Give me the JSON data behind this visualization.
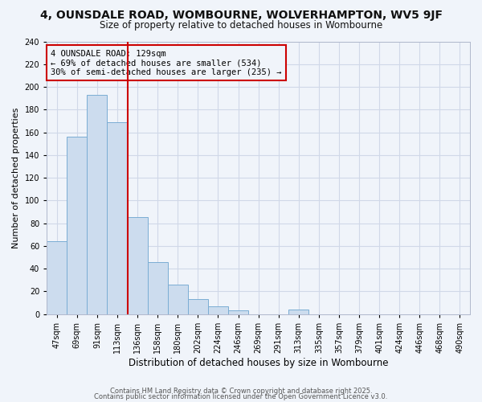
{
  "title": "4, OUNSDALE ROAD, WOMBOURNE, WOLVERHAMPTON, WV5 9JF",
  "subtitle": "Size of property relative to detached houses in Wombourne",
  "xlabel": "Distribution of detached houses by size in Wombourne",
  "ylabel": "Number of detached properties",
  "bar_labels": [
    "47sqm",
    "69sqm",
    "91sqm",
    "113sqm",
    "136sqm",
    "158sqm",
    "180sqm",
    "202sqm",
    "224sqm",
    "246sqm",
    "269sqm",
    "291sqm",
    "313sqm",
    "335sqm",
    "357sqm",
    "379sqm",
    "401sqm",
    "424sqm",
    "446sqm",
    "468sqm",
    "490sqm"
  ],
  "bar_values": [
    64,
    156,
    193,
    169,
    85,
    46,
    26,
    13,
    7,
    3,
    0,
    0,
    4,
    0,
    0,
    0,
    0,
    0,
    0,
    0,
    0
  ],
  "bar_color": "#ccdcee",
  "bar_edge_color": "#7aadd4",
  "vline_color": "#cc0000",
  "annotation_lines": [
    "4 OUNSDALE ROAD: 129sqm",
    "← 69% of detached houses are smaller (534)",
    "30% of semi-detached houses are larger (235) →"
  ],
  "annotation_box_edge": "#cc0000",
  "ylim": [
    0,
    240
  ],
  "yticks": [
    0,
    20,
    40,
    60,
    80,
    100,
    120,
    140,
    160,
    180,
    200,
    220,
    240
  ],
  "grid_color": "#d0d8e8",
  "background_color": "#f0f4fa",
  "footnote1": "Contains HM Land Registry data © Crown copyright and database right 2025.",
  "footnote2": "Contains public sector information licensed under the Open Government Licence v3.0.",
  "title_fontsize": 10,
  "subtitle_fontsize": 8.5,
  "xlabel_fontsize": 8.5,
  "ylabel_fontsize": 8,
  "tick_fontsize": 7,
  "annotation_fontsize": 7.5,
  "footnote_fontsize": 6
}
